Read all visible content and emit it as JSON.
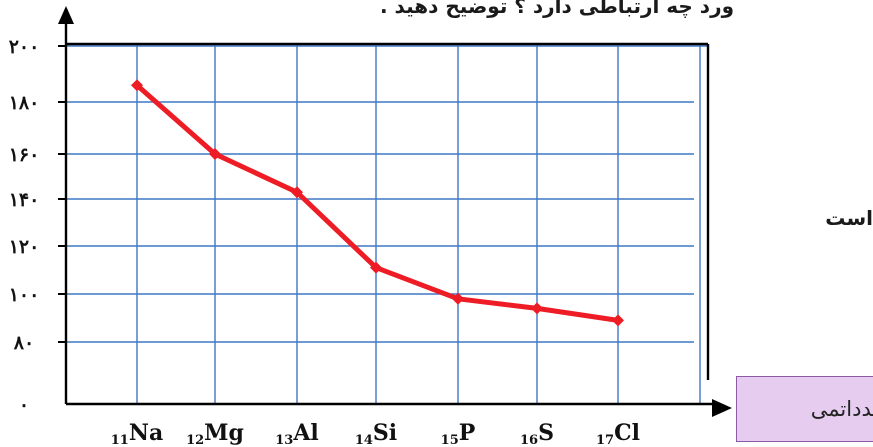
{
  "header": {
    "text": "ورد چه ارتباطی دارد ؟ توضیح دهید ."
  },
  "side_text": "است",
  "x_axis_box": {
    "label": "عدداتمی"
  },
  "colors": {
    "grid": "#3f78c6",
    "line": "#ee1c25",
    "axis": "#000000",
    "box_fill": "#e6cdf0",
    "box_border": "#8c5aa6"
  },
  "chart_data": {
    "type": "line",
    "title": "",
    "xlabel": "عدداتمی",
    "ylabel": "",
    "y_tick_labels": [
      "۲۰۰",
      "۱۸۰",
      "۱۶۰",
      "۱۴۰",
      "۱۲۰",
      "۱۰۰",
      "۸۰",
      "۰"
    ],
    "categories": [
      {
        "number": "11",
        "symbol": "Na"
      },
      {
        "number": "12",
        "symbol": "Mg"
      },
      {
        "number": "13",
        "symbol": "Al"
      },
      {
        "number": "14",
        "symbol": "Si"
      },
      {
        "number": "15",
        "symbol": "P"
      },
      {
        "number": "16",
        "symbol": "S"
      },
      {
        "number": "17",
        "symbol": "Cl"
      }
    ],
    "series": [
      {
        "values": [
          186,
          160,
          143,
          111,
          98,
          94,
          89
        ]
      }
    ],
    "grid": true
  }
}
